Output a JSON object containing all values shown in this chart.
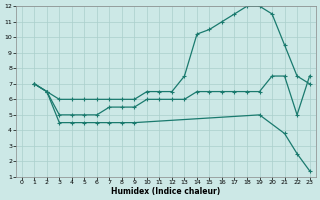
{
  "xlabel": "Humidex (Indice chaleur)",
  "bg_color": "#cce8e6",
  "line_color": "#1a7a6e",
  "grid_color": "#aacfcc",
  "xlim": [
    -0.5,
    23.5
  ],
  "ylim": [
    1,
    12
  ],
  "xticks": [
    0,
    1,
    2,
    3,
    4,
    5,
    6,
    7,
    8,
    9,
    10,
    11,
    12,
    13,
    14,
    15,
    16,
    17,
    18,
    19,
    20,
    21,
    22,
    23
  ],
  "yticks": [
    1,
    2,
    3,
    4,
    5,
    6,
    7,
    8,
    9,
    10,
    11,
    12
  ],
  "line1_x": [
    1,
    2,
    3,
    4,
    5,
    6,
    7,
    8,
    9,
    10,
    11,
    12,
    13,
    14,
    15,
    16,
    17,
    18,
    19,
    20,
    21,
    22,
    23
  ],
  "line1_y": [
    7.0,
    6.5,
    6.0,
    6.0,
    6.0,
    6.0,
    6.0,
    6.0,
    6.0,
    6.5,
    6.5,
    6.5,
    7.5,
    10.2,
    10.5,
    11.0,
    11.5,
    12.0,
    12.0,
    11.5,
    9.5,
    7.5,
    7.0
  ],
  "line2_x": [
    1,
    2,
    3,
    4,
    5,
    6,
    7,
    8,
    9,
    10,
    11,
    12,
    13,
    14,
    15,
    16,
    17,
    18,
    19,
    20,
    21,
    22,
    23
  ],
  "line2_y": [
    7.0,
    6.5,
    5.0,
    5.0,
    5.0,
    5.0,
    5.5,
    5.5,
    5.5,
    6.0,
    6.0,
    6.0,
    6.0,
    6.5,
    6.5,
    6.5,
    6.5,
    6.5,
    6.5,
    7.5,
    7.5,
    5.0,
    7.5
  ],
  "line3_x": [
    1,
    2,
    3,
    4,
    5,
    6,
    7,
    8,
    9,
    19,
    21,
    22,
    23
  ],
  "line3_y": [
    7.0,
    6.5,
    4.5,
    4.5,
    4.5,
    4.5,
    4.5,
    4.5,
    4.5,
    5.0,
    3.8,
    2.5,
    1.4
  ]
}
